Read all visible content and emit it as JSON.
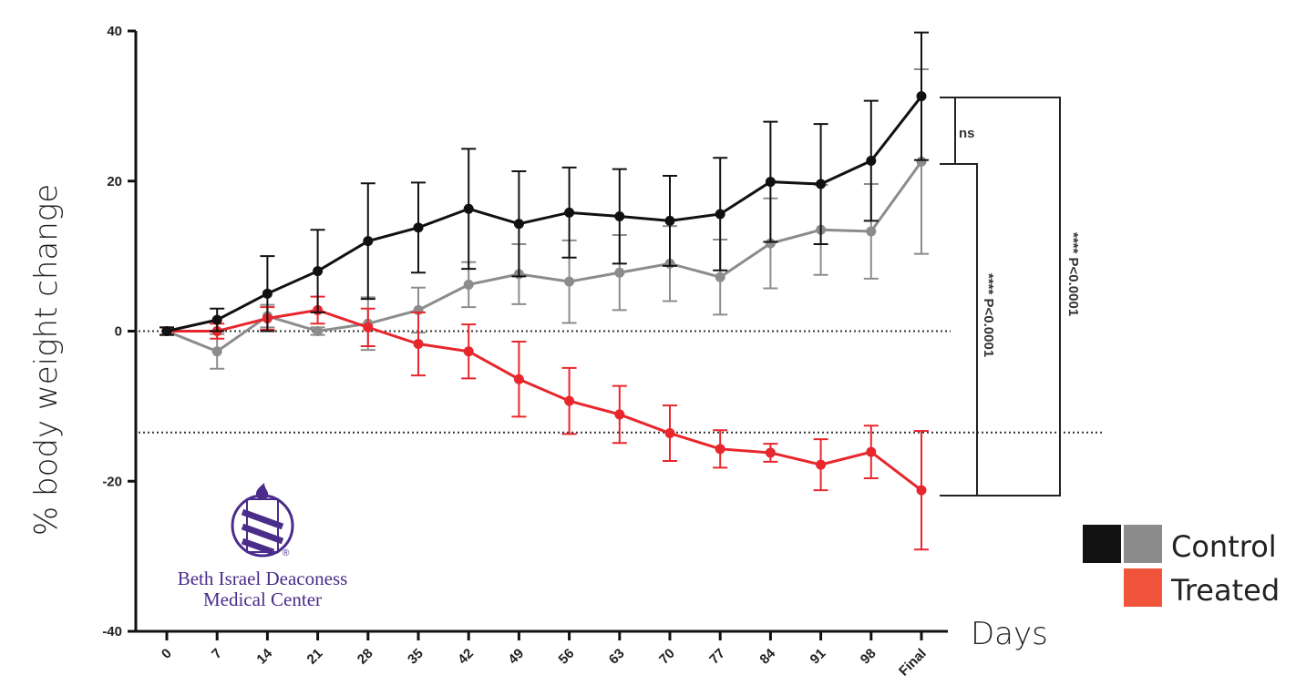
{
  "chart_data": {
    "type": "line",
    "title": "",
    "xlabel": "Days",
    "ylabel": "% body weight change",
    "ylim": [
      -40,
      40
    ],
    "yticks": [
      40,
      20,
      0,
      -20,
      -40
    ],
    "categories": [
      "0",
      "7",
      "14",
      "21",
      "28",
      "35",
      "42",
      "49",
      "56",
      "63",
      "70",
      "77",
      "84",
      "91",
      "98",
      "Final"
    ],
    "grid": false,
    "legend_position": "bottom-right",
    "series": [
      {
        "name": "Control",
        "color": "#111111",
        "values": [
          0,
          1.5,
          5,
          8,
          12,
          13.8,
          16.3,
          14.3,
          15.8,
          15.3,
          14.7,
          15.6,
          19.9,
          19.6,
          22.7,
          31.3
        ],
        "errors": [
          0.5,
          1.5,
          5,
          5.5,
          7.7,
          6,
          8,
          7,
          6,
          6.3,
          6,
          7.5,
          8,
          8,
          8,
          8.5
        ]
      },
      {
        "name": "Control",
        "color": "#8c8c8c",
        "values": [
          0,
          -2.7,
          2,
          0,
          1,
          2.8,
          6.2,
          7.6,
          6.6,
          7.8,
          9,
          7.2,
          11.7,
          13.5,
          13.3,
          22.6
        ],
        "errors": [
          0.5,
          2.3,
          1.5,
          0.5,
          3.5,
          3,
          3,
          4,
          5.5,
          5,
          5,
          5,
          6,
          6,
          6.3,
          12.3
        ]
      },
      {
        "name": "Treated",
        "color": "#e8262d",
        "values": [
          0,
          0,
          1.7,
          2.8,
          0.5,
          -1.7,
          -2.7,
          -6.4,
          -9.3,
          -11.1,
          -13.6,
          -15.7,
          -16.2,
          -17.8,
          -16.1,
          -21.2
        ],
        "errors": [
          0.5,
          1,
          1.5,
          1.8,
          2.5,
          4.2,
          3.6,
          5,
          4.4,
          3.8,
          3.7,
          2.5,
          1.2,
          3.4,
          3.5,
          7.9
        ]
      }
    ],
    "reference_lines": [
      0,
      -13.5
    ],
    "legend": {
      "control_label": "Control",
      "control_colors": [
        "#111111",
        "#8c8c8c"
      ],
      "treated_label": "Treated",
      "treated_color": "#f0543a"
    },
    "annotations": {
      "ns_label": "ns",
      "p_label_1": "**** P<0.0001",
      "p_label_2": "**** P<0.0001"
    }
  },
  "logo": {
    "line1": "Beth Israel Deaconess",
    "line2": "Medical Center",
    "mark": "®"
  }
}
